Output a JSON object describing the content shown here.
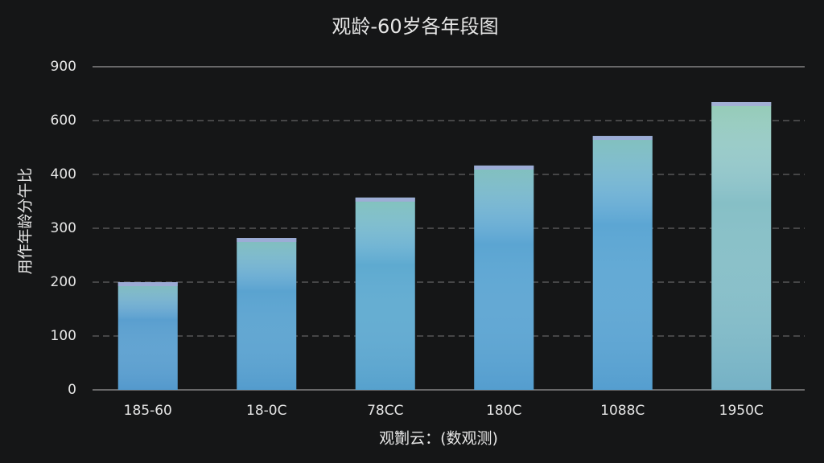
{
  "chart_data": {
    "type": "bar",
    "title": "观龄-60岁各年段图",
    "x_label": "观劗云：(数观测)",
    "y_label": "用作年龄分午比",
    "categories": [
      "185-60",
      "18-0C",
      "78CC",
      "180C",
      "1088C",
      "1950C"
    ],
    "values": [
      200,
      282,
      357,
      433,
      543,
      703
    ],
    "colors": [
      "#5a9fcf",
      "#5aa3d0",
      "#5eaad0",
      "#5ba5d2",
      "#5ca6d3",
      "#86bfc6"
    ],
    "ylim": [
      0,
      900
    ],
    "yticks": [
      0,
      100,
      200,
      300,
      400,
      600,
      900
    ],
    "grid": true
  }
}
